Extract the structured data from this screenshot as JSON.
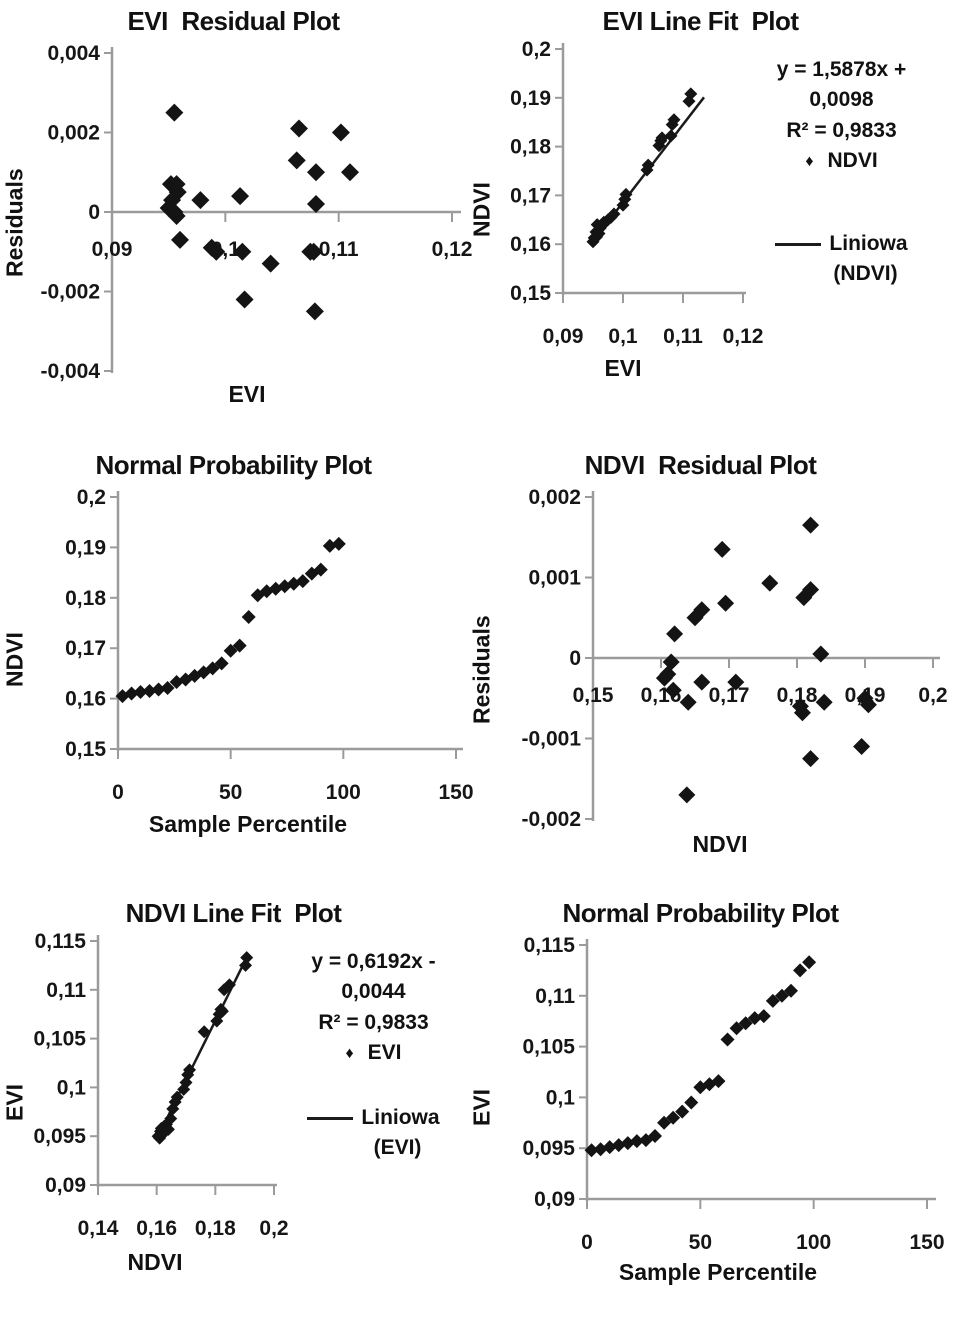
{
  "colors": {
    "axis": "#9b9b9b",
    "marker": "#141414",
    "trend_line": "#1a1a1a",
    "text": "#161616",
    "background": "#ffffff"
  },
  "chart_data": [
    {
      "type": "scatter",
      "title": "EVI  Residual Plot",
      "xlabel": "EVI",
      "ylabel": "Residuals",
      "xlim": [
        0.09,
        0.12
      ],
      "ylim": [
        -0.004,
        0.004
      ],
      "x_axis_cross_y": 0,
      "grid": false,
      "x_ticks": [
        {
          "v": 0.09,
          "label": "0,09"
        },
        {
          "v": 0.1,
          "label": "0,1"
        },
        {
          "v": 0.11,
          "label": "0,11"
        },
        {
          "v": 0.12,
          "label": "0,12"
        }
      ],
      "y_ticks": [
        {
          "v": 0.004,
          "label": "0,004"
        },
        {
          "v": 0.002,
          "label": "0,002"
        },
        {
          "v": 0,
          "label": "0"
        },
        {
          "v": -0.002,
          "label": "-0,002"
        },
        {
          "v": -0.004,
          "label": "-0,004"
        }
      ],
      "points": [
        [
          0.0955,
          0.0025
        ],
        [
          0.0952,
          0.0007
        ],
        [
          0.0957,
          0.0007
        ],
        [
          0.095,
          0.0001
        ],
        [
          0.0953,
          0.0003
        ],
        [
          0.0955,
          0.0
        ],
        [
          0.0957,
          -0.0001
        ],
        [
          0.0958,
          0.0005
        ],
        [
          0.096,
          -0.0007
        ],
        [
          0.0978,
          0.0003
        ],
        [
          0.0988,
          -0.0009
        ],
        [
          0.0992,
          -0.001
        ],
        [
          0.1013,
          0.0004
        ],
        [
          0.1015,
          -0.001
        ],
        [
          0.1017,
          -0.0022
        ],
        [
          0.104,
          -0.0013
        ],
        [
          0.1063,
          0.0013
        ],
        [
          0.1065,
          0.0021
        ],
        [
          0.1075,
          -0.001
        ],
        [
          0.1078,
          -0.001
        ],
        [
          0.108,
          0.001
        ],
        [
          0.108,
          0.0002
        ],
        [
          0.1079,
          -0.0025
        ],
        [
          0.1102,
          0.002
        ],
        [
          0.111,
          0.001
        ]
      ]
    },
    {
      "type": "scatter",
      "title": "EVI Line Fit  Plot",
      "xlabel": "EVI",
      "ylabel": "NDVI",
      "xlim": [
        0.09,
        0.12
      ],
      "ylim": [
        0.15,
        0.2
      ],
      "grid": false,
      "x_ticks": [
        {
          "v": 0.09,
          "label": "0,09"
        },
        {
          "v": 0.1,
          "label": "0,1"
        },
        {
          "v": 0.11,
          "label": "0,11"
        },
        {
          "v": 0.12,
          "label": "0,12"
        }
      ],
      "y_ticks": [
        {
          "v": 0.2,
          "label": "0,2"
        },
        {
          "v": 0.19,
          "label": "0,19"
        },
        {
          "v": 0.18,
          "label": "0,18"
        },
        {
          "v": 0.17,
          "label": "0,17"
        },
        {
          "v": 0.16,
          "label": "0,16"
        },
        {
          "v": 0.15,
          "label": "0,15"
        }
      ],
      "points": [
        [
          0.095,
          0.1605
        ],
        [
          0.0952,
          0.1613
        ],
        [
          0.0955,
          0.1625
        ],
        [
          0.0956,
          0.1615
        ],
        [
          0.0957,
          0.164
        ],
        [
          0.096,
          0.1622
        ],
        [
          0.0962,
          0.1633
        ],
        [
          0.0965,
          0.1638
        ],
        [
          0.0968,
          0.1645
        ],
        [
          0.0975,
          0.165
        ],
        [
          0.098,
          0.1655
        ],
        [
          0.0985,
          0.1662
        ],
        [
          0.1,
          0.168
        ],
        [
          0.1003,
          0.1692
        ],
        [
          0.1005,
          0.1702
        ],
        [
          0.104,
          0.1752
        ],
        [
          0.1042,
          0.1762
        ],
        [
          0.106,
          0.1802
        ],
        [
          0.1063,
          0.1812
        ],
        [
          0.1065,
          0.1818
        ],
        [
          0.108,
          0.1822
        ],
        [
          0.1082,
          0.1845
        ],
        [
          0.1085,
          0.1855
        ],
        [
          0.111,
          0.1893
        ],
        [
          0.1113,
          0.1908
        ]
      ],
      "trend_line": {
        "x1": 0.0948,
        "y1": 0.1603,
        "x2": 0.1135,
        "y2": 0.1901
      },
      "legend": {
        "equation_line1": "y = 1,5878x +",
        "equation_line2": "0,0098",
        "r_squared": "R² = 0,9833",
        "marker_glyph": "♦",
        "series_label": "NDVI",
        "line_label": "Liniowa",
        "line_label_paren": "(NDVI)"
      }
    },
    {
      "type": "scatter",
      "title": "Normal Probability Plot",
      "xlabel": "Sample Percentile",
      "ylabel": "NDVI",
      "xlim": [
        0,
        150
      ],
      "ylim": [
        0.15,
        0.2
      ],
      "grid": false,
      "x_ticks": [
        {
          "v": 0,
          "label": "0"
        },
        {
          "v": 50,
          "label": "50"
        },
        {
          "v": 100,
          "label": "100"
        },
        {
          "v": 150,
          "label": "150"
        }
      ],
      "y_ticks": [
        {
          "v": 0.2,
          "label": "0,2"
        },
        {
          "v": 0.19,
          "label": "0,19"
        },
        {
          "v": 0.18,
          "label": "0,18"
        },
        {
          "v": 0.17,
          "label": "0,17"
        },
        {
          "v": 0.16,
          "label": "0,16"
        },
        {
          "v": 0.15,
          "label": "0,15"
        }
      ],
      "points": [
        [
          2,
          0.1605
        ],
        [
          6,
          0.161
        ],
        [
          10,
          0.1613
        ],
        [
          14,
          0.1615
        ],
        [
          18,
          0.1618
        ],
        [
          22,
          0.1621
        ],
        [
          26,
          0.1633
        ],
        [
          30,
          0.1638
        ],
        [
          34,
          0.1645
        ],
        [
          38,
          0.1652
        ],
        [
          42,
          0.166
        ],
        [
          46,
          0.167
        ],
        [
          50,
          0.1695
        ],
        [
          54,
          0.1705
        ],
        [
          58,
          0.1762
        ],
        [
          62,
          0.1805
        ],
        [
          66,
          0.1813
        ],
        [
          70,
          0.1818
        ],
        [
          74,
          0.1823
        ],
        [
          78,
          0.1828
        ],
        [
          82,
          0.1833
        ],
        [
          86,
          0.1848
        ],
        [
          90,
          0.1856
        ],
        [
          94,
          0.1903
        ],
        [
          98,
          0.1907
        ]
      ]
    },
    {
      "type": "scatter",
      "title": "NDVI  Residual Plot",
      "xlabel": "NDVI",
      "ylabel": "Residuals",
      "xlim": [
        0.15,
        0.2
      ],
      "ylim": [
        -0.002,
        0.002
      ],
      "x_axis_cross_y": 0,
      "grid": false,
      "x_ticks": [
        {
          "v": 0.15,
          "label": "0,15"
        },
        {
          "v": 0.16,
          "label": "0,16"
        },
        {
          "v": 0.17,
          "label": "0,17"
        },
        {
          "v": 0.18,
          "label": "0,18"
        },
        {
          "v": 0.19,
          "label": "0,19"
        },
        {
          "v": 0.2,
          "label": "0,2"
        }
      ],
      "y_ticks": [
        {
          "v": 0.002,
          "label": "0,002"
        },
        {
          "v": 0.001,
          "label": "0,001"
        },
        {
          "v": 0,
          "label": "0"
        },
        {
          "v": -0.001,
          "label": "-0,001"
        },
        {
          "v": -0.002,
          "label": "-0,002"
        }
      ],
      "points": [
        [
          0.182,
          0.00165
        ],
        [
          0.169,
          0.00135
        ],
        [
          0.176,
          0.00093
        ],
        [
          0.182,
          0.00085
        ],
        [
          0.181,
          0.00075
        ],
        [
          0.1695,
          0.00068
        ],
        [
          0.166,
          0.0006
        ],
        [
          0.165,
          0.0005
        ],
        [
          0.162,
          0.0003
        ],
        [
          0.1615,
          -5e-05
        ],
        [
          0.161,
          -0.0002
        ],
        [
          0.1605,
          -0.00025
        ],
        [
          0.1618,
          -0.0004
        ],
        [
          0.164,
          -0.00055
        ],
        [
          0.166,
          -0.0003
        ],
        [
          0.171,
          -0.0003
        ],
        [
          0.1835,
          5e-05
        ],
        [
          0.184,
          -0.00055
        ],
        [
          0.1805,
          -0.0006
        ],
        [
          0.1808,
          -0.00068
        ],
        [
          0.19,
          -0.0005
        ],
        [
          0.1905,
          -0.00058
        ],
        [
          0.182,
          -0.00125
        ],
        [
          0.1895,
          -0.0011
        ],
        [
          0.1638,
          -0.0017
        ]
      ]
    },
    {
      "type": "scatter",
      "title": "NDVI Line Fit  Plot",
      "xlabel": "NDVI",
      "ylabel": "EVI",
      "xlim": [
        0.14,
        0.2
      ],
      "ylim": [
        0.09,
        0.115
      ],
      "grid": false,
      "x_ticks": [
        {
          "v": 0.14,
          "label": "0,14"
        },
        {
          "v": 0.16,
          "label": "0,16"
        },
        {
          "v": 0.18,
          "label": "0,18"
        },
        {
          "v": 0.2,
          "label": "0,2"
        }
      ],
      "y_ticks": [
        {
          "v": 0.115,
          "label": "0,115"
        },
        {
          "v": 0.11,
          "label": "0,11"
        },
        {
          "v": 0.105,
          "label": "0,105"
        },
        {
          "v": 0.1,
          "label": "0,1"
        },
        {
          "v": 0.095,
          "label": "0,095"
        },
        {
          "v": 0.09,
          "label": "0,09"
        }
      ],
      "points": [
        [
          0.1605,
          0.095
        ],
        [
          0.161,
          0.0948
        ],
        [
          0.1613,
          0.0955
        ],
        [
          0.1616,
          0.0958
        ],
        [
          0.162,
          0.0952
        ],
        [
          0.1625,
          0.096
        ],
        [
          0.1633,
          0.0962
        ],
        [
          0.164,
          0.0957
        ],
        [
          0.1648,
          0.0968
        ],
        [
          0.1655,
          0.0978
        ],
        [
          0.1663,
          0.0985
        ],
        [
          0.167,
          0.099
        ],
        [
          0.1692,
          0.0998
        ],
        [
          0.17,
          0.1005
        ],
        [
          0.1706,
          0.1013
        ],
        [
          0.1712,
          0.1018
        ],
        [
          0.1762,
          0.1057
        ],
        [
          0.1805,
          0.1068
        ],
        [
          0.1813,
          0.1075
        ],
        [
          0.1819,
          0.108
        ],
        [
          0.1824,
          0.1078
        ],
        [
          0.183,
          0.11
        ],
        [
          0.1848,
          0.1105
        ],
        [
          0.1903,
          0.1125
        ],
        [
          0.1907,
          0.1133
        ]
      ],
      "trend_line": {
        "x1": 0.16,
        "y1": 0.0947,
        "x2": 0.191,
        "y2": 0.1135
      },
      "legend": {
        "equation_line1": "y = 0,6192x -",
        "equation_line2": "0,0044",
        "r_squared": "R² = 0,9833",
        "marker_glyph": "♦",
        "series_label": "EVI",
        "line_label": "Liniowa",
        "line_label_paren": "(EVI)"
      }
    },
    {
      "type": "scatter",
      "title": "Normal Probability Plot",
      "xlabel": "Sample Percentile",
      "ylabel": "EVI",
      "xlim": [
        0,
        150
      ],
      "ylim": [
        0.09,
        0.115
      ],
      "grid": false,
      "x_ticks": [
        {
          "v": 0,
          "label": "0"
        },
        {
          "v": 50,
          "label": "50"
        },
        {
          "v": 100,
          "label": "100"
        },
        {
          "v": 150,
          "label": "150"
        }
      ],
      "y_ticks": [
        {
          "v": 0.115,
          "label": "0,115"
        },
        {
          "v": 0.11,
          "label": "0,11"
        },
        {
          "v": 0.105,
          "label": "0,105"
        },
        {
          "v": 0.1,
          "label": "0,1"
        },
        {
          "v": 0.095,
          "label": "0,095"
        },
        {
          "v": 0.09,
          "label": "0,09"
        }
      ],
      "points": [
        [
          2,
          0.0948
        ],
        [
          6,
          0.0949
        ],
        [
          10,
          0.0951
        ],
        [
          14,
          0.0953
        ],
        [
          18,
          0.0955
        ],
        [
          22,
          0.0957
        ],
        [
          26,
          0.0958
        ],
        [
          30,
          0.0962
        ],
        [
          34,
          0.0975
        ],
        [
          38,
          0.098
        ],
        [
          42,
          0.0986
        ],
        [
          46,
          0.0995
        ],
        [
          50,
          0.101
        ],
        [
          54,
          0.1013
        ],
        [
          58,
          0.1016
        ],
        [
          62,
          0.1057
        ],
        [
          66,
          0.1068
        ],
        [
          70,
          0.1073
        ],
        [
          74,
          0.1078
        ],
        [
          78,
          0.108
        ],
        [
          82,
          0.1095
        ],
        [
          86,
          0.11
        ],
        [
          90,
          0.1105
        ],
        [
          94,
          0.1125
        ],
        [
          98,
          0.1133
        ]
      ]
    }
  ]
}
